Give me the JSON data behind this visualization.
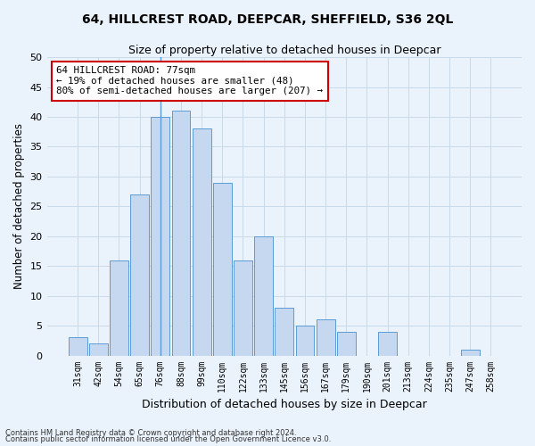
{
  "title": "64, HILLCREST ROAD, DEEPCAR, SHEFFIELD, S36 2QL",
  "subtitle": "Size of property relative to detached houses in Deepcar",
  "xlabel": "Distribution of detached houses by size in Deepcar",
  "ylabel": "Number of detached properties",
  "categories": [
    "31sqm",
    "42sqm",
    "54sqm",
    "65sqm",
    "76sqm",
    "88sqm",
    "99sqm",
    "110sqm",
    "122sqm",
    "133sqm",
    "145sqm",
    "156sqm",
    "167sqm",
    "179sqm",
    "190sqm",
    "201sqm",
    "213sqm",
    "224sqm",
    "235sqm",
    "247sqm",
    "258sqm"
  ],
  "values": [
    3,
    2,
    16,
    27,
    40,
    41,
    38,
    29,
    16,
    20,
    8,
    5,
    6,
    4,
    0,
    4,
    0,
    0,
    0,
    1,
    0
  ],
  "bar_color": "#c5d8f0",
  "bar_edge_color": "#5b9bd5",
  "highlight_bar_index": 4,
  "annotation_text": "64 HILLCREST ROAD: 77sqm\n← 19% of detached houses are smaller (48)\n80% of semi-detached houses are larger (207) →",
  "annotation_box_color": "#ffffff",
  "annotation_box_edge_color": "#cc0000",
  "ylim": [
    0,
    50
  ],
  "yticks": [
    0,
    5,
    10,
    15,
    20,
    25,
    30,
    35,
    40,
    45,
    50
  ],
  "grid_color": "#c8daea",
  "background_color": "#eaf2fb",
  "footnote1": "Contains HM Land Registry data © Crown copyright and database right 2024.",
  "footnote2": "Contains public sector information licensed under the Open Government Licence v3.0."
}
